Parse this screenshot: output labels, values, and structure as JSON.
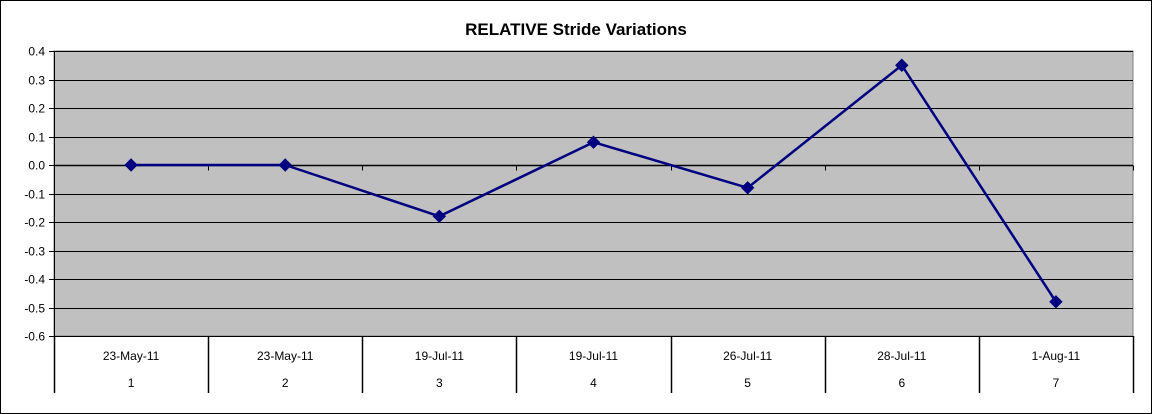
{
  "chart_data": {
    "type": "line",
    "title": "RELATIVE Stride Variations",
    "xlabel": "",
    "ylabel": "",
    "categories": [
      {
        "date": "23-May-11",
        "index": "1"
      },
      {
        "date": "23-May-11",
        "index": "2"
      },
      {
        "date": "19-Jul-11",
        "index": "3"
      },
      {
        "date": "19-Jul-11",
        "index": "4"
      },
      {
        "date": "26-Jul-11",
        "index": "5"
      },
      {
        "date": "28-Jul-11",
        "index": "6"
      },
      {
        "date": "1-Aug-11",
        "index": "7"
      }
    ],
    "series": [
      {
        "values": [
          0.0,
          0.0,
          -0.18,
          0.08,
          -0.08,
          0.35,
          -0.48
        ],
        "color": "#000080",
        "marker": "diamond"
      }
    ],
    "ylim": [
      -0.6,
      0.4
    ],
    "yticks": [
      "0.4",
      "0.3",
      "0.2",
      "0.1",
      "0.0",
      "-0.1",
      "-0.2",
      "-0.3",
      "-0.4",
      "-0.5",
      "-0.6"
    ],
    "grid": true,
    "legend": "none",
    "plot_background": "#c0c0c0"
  }
}
